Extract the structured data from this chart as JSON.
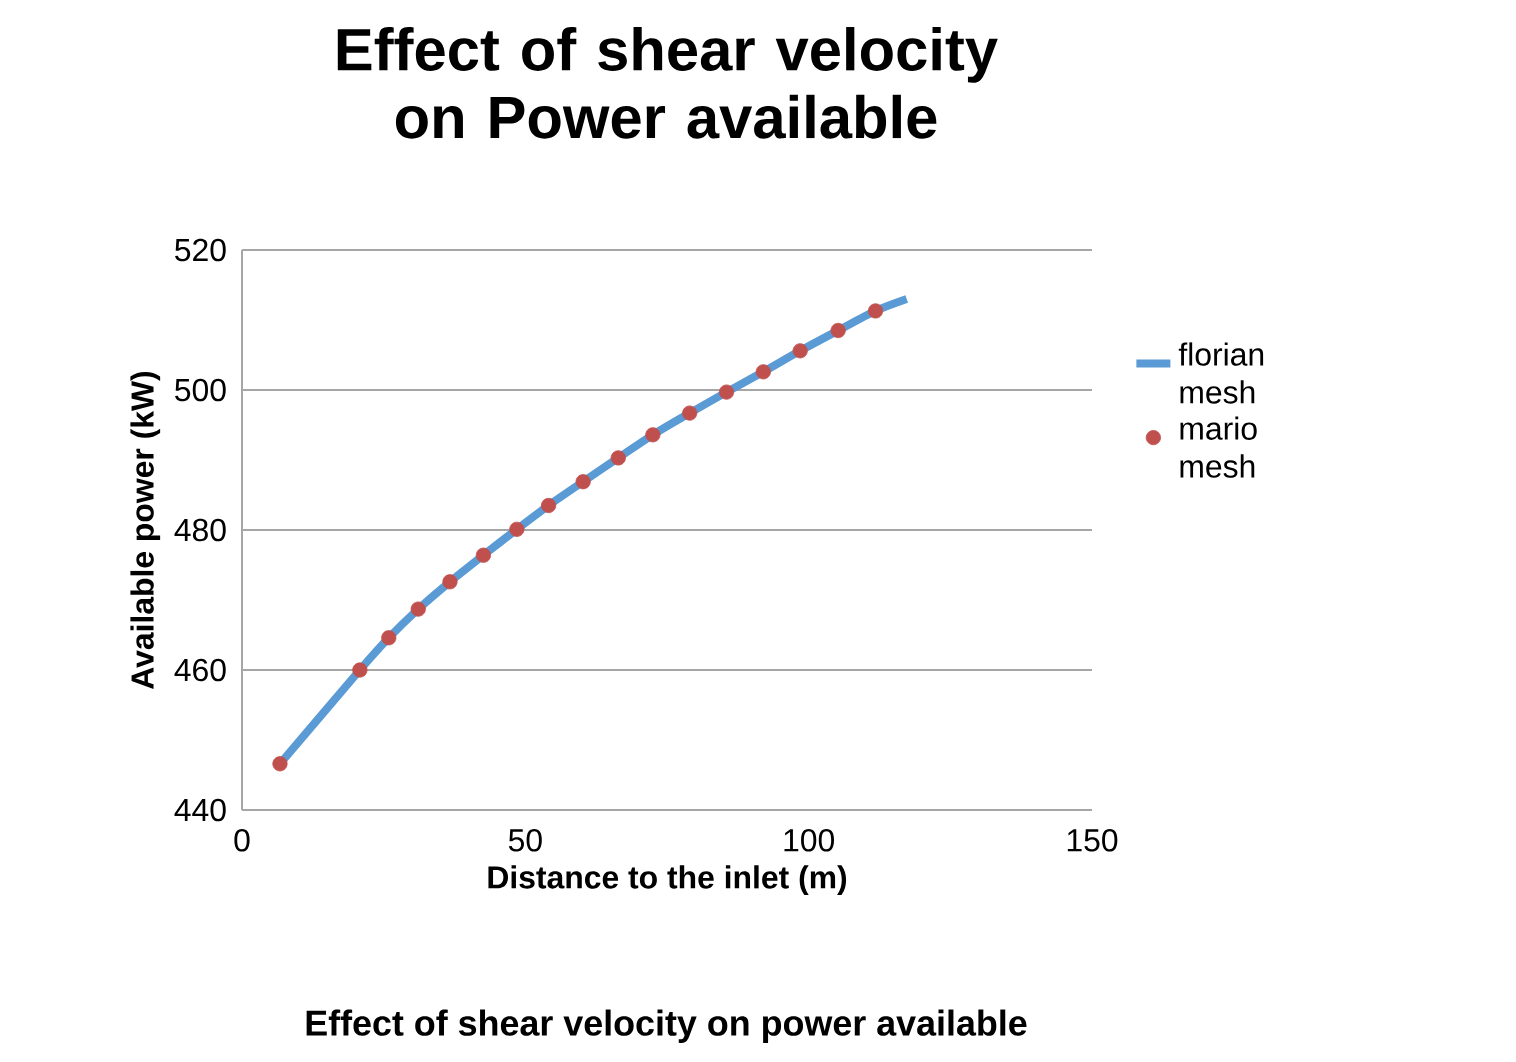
{
  "chart_data": {
    "type": "line",
    "title": "Effect of shear velocity on Power available",
    "xlabel": "Distance to the inlet (m)",
    "ylabel": "Available power (kW)",
    "annotations": [
      "Effect of shear velocity on power available"
    ],
    "xlim": [
      0,
      150
    ],
    "xticks": [
      0,
      50,
      100,
      150
    ],
    "ylim": [
      440,
      520
    ],
    "yticks": [
      440,
      460,
      480,
      500,
      520
    ],
    "grid": "y",
    "legend": "right",
    "series": [
      {
        "name": "florian mesh",
        "marker": "none",
        "color": "#5b9bd5",
        "x": [
          6.7,
          20.8,
          25.9,
          31.1,
          36.7,
          42.6,
          48.5,
          54.1,
          60.2,
          66.4,
          72.5,
          79.0,
          85.5,
          92.0,
          98.5,
          105.2,
          111.8,
          117.3
        ],
        "values": [
          446.6,
          460.0,
          464.6,
          468.7,
          472.6,
          476.4,
          480.1,
          483.5,
          486.9,
          490.3,
          493.6,
          496.7,
          499.7,
          502.6,
          505.6,
          508.5,
          511.3,
          513.0
        ]
      },
      {
        "name": "mario mesh",
        "type": "scatter",
        "marker": "circle",
        "color": "#c0504d",
        "x": [
          6.7,
          20.8,
          25.9,
          31.1,
          36.7,
          42.6,
          48.5,
          54.1,
          60.2,
          66.4,
          72.5,
          79.0,
          85.5,
          92.0,
          98.5,
          105.2,
          111.8
        ],
        "values": [
          446.6,
          460.0,
          464.6,
          468.7,
          472.6,
          476.4,
          480.1,
          483.5,
          486.9,
          490.3,
          493.6,
          496.7,
          499.7,
          502.6,
          505.6,
          508.5,
          511.3
        ]
      }
    ]
  }
}
